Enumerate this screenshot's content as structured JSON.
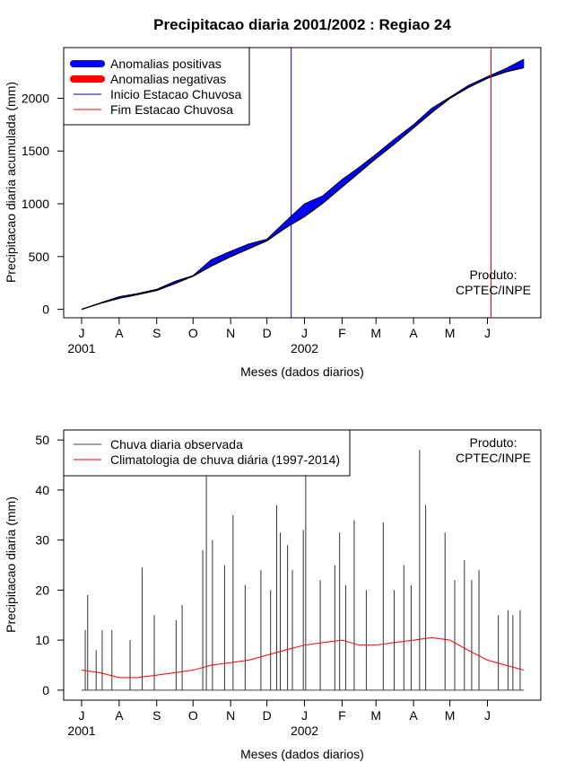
{
  "chart_data": [
    {
      "type": "area",
      "title": "Precipitacao diaria 2001/2002 : Regiao 24",
      "xlabel": "Meses (dados diarios)",
      "ylabel": "Precipitacao diaria acumulada (mm)",
      "ylim": [
        -80,
        2480
      ],
      "y_ticks": [
        0,
        500,
        1000,
        1500,
        2000
      ],
      "month_ticks": [
        "J",
        "A",
        "S",
        "O",
        "N",
        "D",
        "J",
        "F",
        "M",
        "A",
        "M",
        "J"
      ],
      "month_day_offsets": [
        0,
        31,
        62,
        92,
        123,
        153,
        184,
        215,
        243,
        274,
        304,
        335
      ],
      "year_labels": [
        {
          "text": "2001",
          "day": 0
        },
        {
          "text": "2002",
          "day": 184
        }
      ],
      "days_total": 365,
      "legend": [
        {
          "label": "Anomalias positivas",
          "color": "#0000ff",
          "style": "thick"
        },
        {
          "label": "Anomalias negativas",
          "color": "#ff0000",
          "style": "thick"
        },
        {
          "label": "Inicio Estacao Chuvosa",
          "color": "#0000aa",
          "style": "thin"
        },
        {
          "label": "Fim Estacao Chuvosa",
          "color": "#ff0000",
          "style": "thin"
        }
      ],
      "series": [
        {
          "name": "Climatologia acumulada",
          "x": [
            0,
            15,
            31,
            46,
            62,
            77,
            92,
            107,
            123,
            138,
            153,
            168,
            184,
            199,
            215,
            229,
            243,
            258,
            274,
            289,
            304,
            319,
            335,
            350,
            365
          ],
          "values": [
            0,
            55,
            105,
            140,
            180,
            245,
            315,
            410,
            500,
            575,
            650,
            770,
            880,
            1005,
            1160,
            1295,
            1430,
            1565,
            1720,
            1865,
            2000,
            2100,
            2190,
            2250,
            2290
          ]
        },
        {
          "name": "Observada acumulada",
          "x": [
            0,
            15,
            31,
            46,
            62,
            77,
            92,
            107,
            123,
            138,
            153,
            168,
            184,
            199,
            215,
            229,
            243,
            258,
            274,
            289,
            304,
            319,
            335,
            350,
            365
          ],
          "values": [
            0,
            60,
            120,
            150,
            190,
            265,
            320,
            470,
            550,
            620,
            665,
            830,
            1000,
            1075,
            1230,
            1345,
            1470,
            1610,
            1750,
            1905,
            2010,
            2120,
            2205,
            2280,
            2370
          ]
        }
      ],
      "rainy_season_start_day": 173,
      "rainy_season_end_day": 338,
      "annotation": "Produto:\nCPTEC/INPE",
      "annotation_lines": [
        "Produto:",
        "CPTEC/INPE"
      ]
    },
    {
      "type": "line",
      "xlabel": "Meses (dados diarios)",
      "ylabel": "Precipitacao diaria (mm)",
      "ylim": [
        -2,
        52
      ],
      "y_ticks": [
        0,
        10,
        20,
        30,
        40,
        50
      ],
      "month_ticks": [
        "J",
        "A",
        "S",
        "O",
        "N",
        "D",
        "J",
        "F",
        "M",
        "A",
        "M",
        "J"
      ],
      "month_day_offsets": [
        0,
        31,
        62,
        92,
        123,
        153,
        184,
        215,
        243,
        274,
        304,
        335
      ],
      "year_labels": [
        {
          "text": "2001",
          "day": 0
        },
        {
          "text": "2002",
          "day": 184
        }
      ],
      "days_total": 365,
      "legend": [
        {
          "label": "Chuva diaria observada",
          "color": "#444444"
        },
        {
          "label": "Climatologia de chuva diária (1997-2014)",
          "color": "#ff0000"
        }
      ],
      "series": [
        {
          "name": "Climatologia de chuva diária (1997-2014)",
          "x": [
            0,
            15,
            31,
            46,
            62,
            77,
            92,
            107,
            123,
            138,
            153,
            168,
            184,
            199,
            215,
            229,
            243,
            258,
            274,
            289,
            304,
            319,
            335,
            350,
            365
          ],
          "values": [
            4,
            3.5,
            2.5,
            2.5,
            3,
            3.5,
            4,
            5,
            5.5,
            6,
            7,
            8,
            9,
            9.5,
            10,
            9,
            9,
            9.5,
            10,
            10.5,
            10,
            8,
            6,
            5,
            4
          ]
        },
        {
          "name": "Chuva diaria observada",
          "spikes": [
            {
              "day": 3,
              "value": 12
            },
            {
              "day": 5,
              "value": 19
            },
            {
              "day": 12,
              "value": 8
            },
            {
              "day": 17,
              "value": 12
            },
            {
              "day": 25,
              "value": 12
            },
            {
              "day": 40,
              "value": 10
            },
            {
              "day": 50,
              "value": 24.5
            },
            {
              "day": 60,
              "value": 15
            },
            {
              "day": 78,
              "value": 14
            },
            {
              "day": 83,
              "value": 17
            },
            {
              "day": 100,
              "value": 28
            },
            {
              "day": 103,
              "value": 43
            },
            {
              "day": 108,
              "value": 30
            },
            {
              "day": 118,
              "value": 25
            },
            {
              "day": 125,
              "value": 35
            },
            {
              "day": 135,
              "value": 21
            },
            {
              "day": 148,
              "value": 24
            },
            {
              "day": 156,
              "value": 20
            },
            {
              "day": 161,
              "value": 37
            },
            {
              "day": 164,
              "value": 31.5
            },
            {
              "day": 170,
              "value": 29
            },
            {
              "day": 174,
              "value": 24
            },
            {
              "day": 183,
              "value": 32
            },
            {
              "day": 185,
              "value": 43
            },
            {
              "day": 197,
              "value": 22
            },
            {
              "day": 209,
              "value": 25
            },
            {
              "day": 213,
              "value": 31.5
            },
            {
              "day": 218,
              "value": 21
            },
            {
              "day": 225,
              "value": 34
            },
            {
              "day": 235,
              "value": 20
            },
            {
              "day": 249,
              "value": 33.5
            },
            {
              "day": 258,
              "value": 20
            },
            {
              "day": 266,
              "value": 25
            },
            {
              "day": 272,
              "value": 21
            },
            {
              "day": 279,
              "value": 48
            },
            {
              "day": 284,
              "value": 37
            },
            {
              "day": 300,
              "value": 31.5
            },
            {
              "day": 308,
              "value": 22
            },
            {
              "day": 316,
              "value": 26
            },
            {
              "day": 322,
              "value": 22
            },
            {
              "day": 328,
              "value": 24
            },
            {
              "day": 344,
              "value": 15
            },
            {
              "day": 352,
              "value": 16
            },
            {
              "day": 356,
              "value": 15
            },
            {
              "day": 362,
              "value": 16
            }
          ]
        }
      ],
      "annotation": "Produto:\nCPTEC/INPE",
      "annotation_lines": [
        "Produto:",
        "CPTEC/INPE"
      ]
    }
  ]
}
